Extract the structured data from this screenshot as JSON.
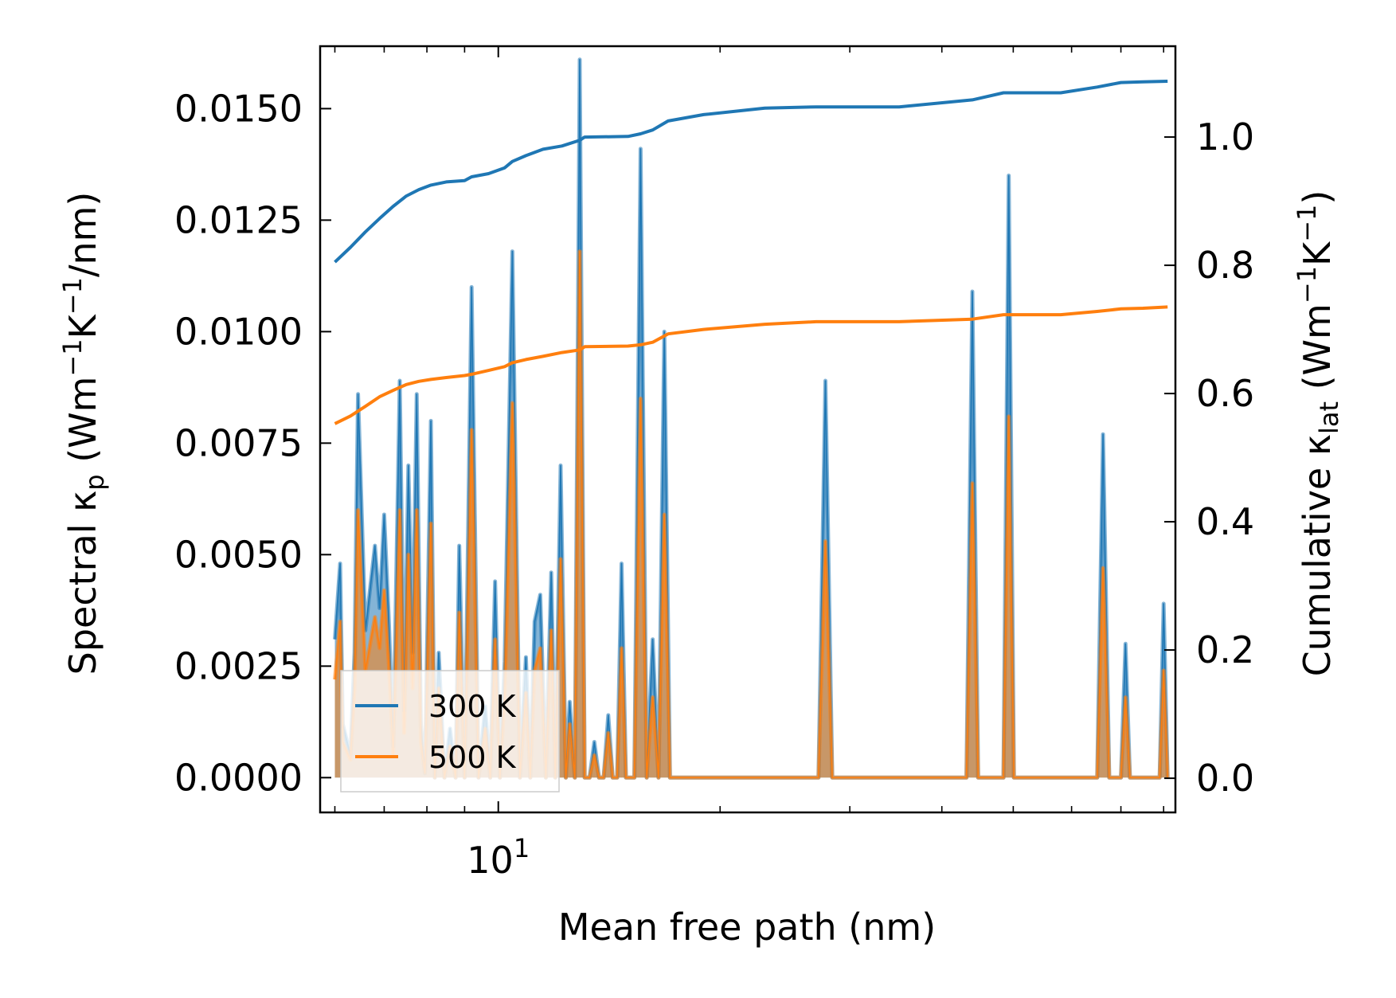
{
  "chart_data": {
    "type": "line",
    "x_scale": "log",
    "xlim": [
      5.73,
      83.0
    ],
    "x_ticks": [
      {
        "value": 10,
        "base": "10",
        "exp": "1"
      }
    ],
    "x_minor_ticks": [
      6,
      7,
      8,
      9,
      20,
      30,
      40,
      50,
      60,
      70,
      80
    ],
    "xlabel": "Mean free path (nm)",
    "y_left": {
      "label_parts": {
        "main": "Spectral κ",
        "sub": "p",
        "units_a": " (Wm",
        "sup_a": "−1",
        "units_b": "K",
        "sup_b": "−1",
        "units_c": "/nm)"
      },
      "ylim": [
        -0.00078,
        0.0164
      ],
      "ticks": [
        "0.0000",
        "0.0025",
        "0.0050",
        "0.0075",
        "0.0100",
        "0.0125",
        "0.0150"
      ],
      "tick_values": [
        0,
        0.0025,
        0.005,
        0.0075,
        0.01,
        0.0125,
        0.015
      ]
    },
    "y_right": {
      "label_parts": {
        "main": "Cumulative κ",
        "sub": "lat",
        "units_a": " (Wm",
        "sup_a": "−1",
        "units_b": "K",
        "sup_b": "−1",
        "units_c": ")"
      },
      "ylim": [
        -0.0533,
        1.1417
      ],
      "ticks": [
        "0.0",
        "0.2",
        "0.4",
        "0.6",
        "0.8",
        "1.0"
      ],
      "tick_values": [
        0,
        0.2,
        0.4,
        0.6,
        0.8,
        1.0
      ]
    },
    "spectral_series": [
      {
        "name": "300 K",
        "color": "#1f77b4",
        "x": [
          6.0,
          6.1,
          6.15,
          6.3,
          6.38,
          6.45,
          6.6,
          6.8,
          6.9,
          7.0,
          7.1,
          7.2,
          7.35,
          7.45,
          7.55,
          7.65,
          7.75,
          7.85,
          7.95,
          8.1,
          8.2,
          8.3,
          8.45,
          8.6,
          8.75,
          8.85,
          9.0,
          9.2,
          9.4,
          9.6,
          9.75,
          9.9,
          10.05,
          10.2,
          10.45,
          10.7,
          10.9,
          11.05,
          11.2,
          11.4,
          11.6,
          11.8,
          11.95,
          12.15,
          12.35,
          12.5,
          12.7,
          12.9,
          13.1,
          13.3,
          13.5,
          13.7,
          13.9,
          14.1,
          14.3,
          14.5,
          14.7,
          14.9,
          15.1,
          15.3,
          15.6,
          15.9,
          16.2,
          16.5,
          16.8,
          17.1,
          17.5,
          17.9,
          18.3,
          18.7,
          19.1,
          19.5,
          19.9,
          20.3,
          20.7,
          21.1,
          21.5,
          21.9,
          22.3,
          22.7,
          23.0,
          23.3,
          23.7,
          24.1,
          24.5,
          24.9,
          27.2,
          27.8,
          28.4,
          43.2,
          44.0,
          44.8,
          48.5,
          49.3,
          50.1,
          65.0,
          66.2,
          67.5,
          70.0,
          71.0,
          72.0,
          79.0,
          80.0,
          81.0
        ],
        "y": [
          0.0031,
          0.0048,
          0.0012,
          0.0005,
          0.0028,
          0.0086,
          0.0033,
          0.0052,
          0.0038,
          0.0059,
          0.0036,
          0.0007,
          0.0089,
          0.0015,
          0.007,
          0.0028,
          0.0086,
          0.0012,
          0.0001,
          0.008,
          0.0,
          0.0028,
          0.0,
          0.0011,
          0.0,
          0.0052,
          0.0,
          0.011,
          0.0,
          0.0016,
          0.0,
          0.0044,
          0.0,
          0.0026,
          0.0118,
          0.0,
          0.0027,
          0.0,
          0.0035,
          0.0041,
          0.0,
          0.0046,
          0.0,
          0.007,
          0.0,
          0.0017,
          0.0,
          0.0161,
          0.0,
          0.0,
          0.0008,
          0.0,
          0.0,
          0.0014,
          0.0,
          0.0,
          0.0048,
          0.0,
          0.0,
          0.0,
          0.0141,
          0.0,
          0.0031,
          0.0,
          0.01,
          0.0,
          0.0,
          0.0,
          0.0,
          0.0,
          0.0,
          0.0,
          0.0,
          0.0,
          0.0,
          0.0,
          0.0,
          0.0,
          0.0,
          0.0,
          0.0,
          0.0,
          0.0,
          0.0,
          0.0,
          0.0,
          0.0,
          0.0089,
          0.0,
          0.0,
          0.0109,
          0.0,
          0.0,
          0.0135,
          0.0,
          0.0,
          0.0077,
          0.0,
          0.0,
          0.003,
          0.0,
          0.0,
          0.0039,
          0.0
        ]
      },
      {
        "name": "500 K",
        "color": "#ff7f0e",
        "x": [
          6.0,
          6.1,
          6.15,
          6.3,
          6.38,
          6.45,
          6.6,
          6.8,
          6.9,
          7.0,
          7.1,
          7.2,
          7.35,
          7.45,
          7.55,
          7.65,
          7.75,
          7.85,
          7.95,
          8.1,
          8.2,
          8.3,
          8.45,
          8.6,
          8.75,
          8.85,
          9.0,
          9.2,
          9.4,
          9.6,
          9.75,
          9.9,
          10.05,
          10.2,
          10.45,
          10.7,
          10.9,
          11.05,
          11.2,
          11.4,
          11.6,
          11.8,
          11.95,
          12.15,
          12.35,
          12.5,
          12.7,
          12.9,
          13.1,
          13.3,
          13.5,
          13.7,
          13.9,
          14.1,
          14.3,
          14.5,
          14.7,
          14.9,
          15.1,
          15.3,
          15.6,
          15.9,
          16.2,
          16.5,
          16.8,
          17.1,
          17.5,
          17.9,
          18.3,
          18.7,
          19.1,
          19.5,
          19.9,
          20.3,
          20.7,
          21.1,
          21.5,
          21.9,
          22.3,
          22.7,
          23.0,
          23.3,
          23.7,
          24.1,
          24.5,
          24.9,
          27.2,
          27.8,
          28.4,
          43.2,
          44.0,
          44.8,
          48.5,
          49.3,
          50.1,
          65.0,
          66.2,
          67.5,
          70.0,
          71.0,
          72.0,
          79.0,
          80.0,
          81.0
        ],
        "y": [
          0.0022,
          0.0035,
          0.0008,
          0.0004,
          0.002,
          0.006,
          0.0024,
          0.0036,
          0.0029,
          0.0042,
          0.0026,
          0.0005,
          0.006,
          0.001,
          0.005,
          0.002,
          0.006,
          0.0008,
          0.0001,
          0.0057,
          0.0,
          0.002,
          0.0,
          0.0007,
          0.0,
          0.0037,
          0.0,
          0.0078,
          0.0,
          0.0011,
          0.0,
          0.0031,
          0.0,
          0.0018,
          0.0084,
          0.0,
          0.0019,
          0.0,
          0.0024,
          0.0029,
          0.0,
          0.0033,
          0.0,
          0.0049,
          0.0,
          0.0012,
          0.0,
          0.0118,
          0.0,
          0.0,
          0.0005,
          0.0,
          0.0,
          0.001,
          0.0,
          0.0,
          0.0029,
          0.0,
          0.0,
          0.0,
          0.0085,
          0.0,
          0.0018,
          0.0,
          0.0059,
          0.0,
          0.0,
          0.0,
          0.0,
          0.0,
          0.0,
          0.0,
          0.0,
          0.0,
          0.0,
          0.0,
          0.0,
          0.0,
          0.0,
          0.0,
          0.0,
          0.0,
          0.0,
          0.0,
          0.0,
          0.0,
          0.0,
          0.0053,
          0.0,
          0.0,
          0.0066,
          0.0,
          0.0,
          0.0081,
          0.0,
          0.0,
          0.0047,
          0.0,
          0.0,
          0.0018,
          0.0,
          0.0,
          0.0024,
          0.0
        ]
      }
    ],
    "cumulative_series": [
      {
        "name": "300 K",
        "color": "#1f77b4",
        "x": [
          6.0,
          6.3,
          6.6,
          6.9,
          7.2,
          7.5,
          7.8,
          8.1,
          8.5,
          9.0,
          9.2,
          9.7,
          10.2,
          10.45,
          10.9,
          11.5,
          12.2,
          12.9,
          13.1,
          15.0,
          15.6,
          16.2,
          17.0,
          19.0,
          23.0,
          27.0,
          35.0,
          44.0,
          48.5,
          58.0,
          65.0,
          70.0,
          75.0,
          81.0
        ],
        "y": [
          0.805,
          0.828,
          0.852,
          0.873,
          0.892,
          0.908,
          0.918,
          0.925,
          0.93,
          0.932,
          0.938,
          0.943,
          0.952,
          0.962,
          0.971,
          0.981,
          0.986,
          0.995,
          1.0,
          1.001,
          1.005,
          1.011,
          1.025,
          1.035,
          1.045,
          1.047,
          1.047,
          1.058,
          1.069,
          1.069,
          1.078,
          1.085,
          1.086,
          1.087
        ]
      },
      {
        "name": "500 K",
        "color": "#ff7f0e",
        "x": [
          6.0,
          6.3,
          6.6,
          6.9,
          7.2,
          7.5,
          7.8,
          8.1,
          8.5,
          9.0,
          9.2,
          9.7,
          10.2,
          10.45,
          10.9,
          11.5,
          12.2,
          12.9,
          13.1,
          15.0,
          15.6,
          16.2,
          17.0,
          19.0,
          23.0,
          27.0,
          35.0,
          44.0,
          48.5,
          58.0,
          65.0,
          70.0,
          75.0,
          81.0
        ],
        "y": [
          0.553,
          0.565,
          0.58,
          0.595,
          0.605,
          0.614,
          0.619,
          0.622,
          0.625,
          0.628,
          0.63,
          0.636,
          0.642,
          0.648,
          0.653,
          0.658,
          0.664,
          0.668,
          0.673,
          0.674,
          0.676,
          0.68,
          0.693,
          0.7,
          0.708,
          0.712,
          0.712,
          0.716,
          0.723,
          0.723,
          0.728,
          0.732,
          0.733,
          0.735
        ]
      }
    ],
    "legend": {
      "placement": "lower-left",
      "entries": [
        "300 K",
        "500 K"
      ]
    }
  }
}
